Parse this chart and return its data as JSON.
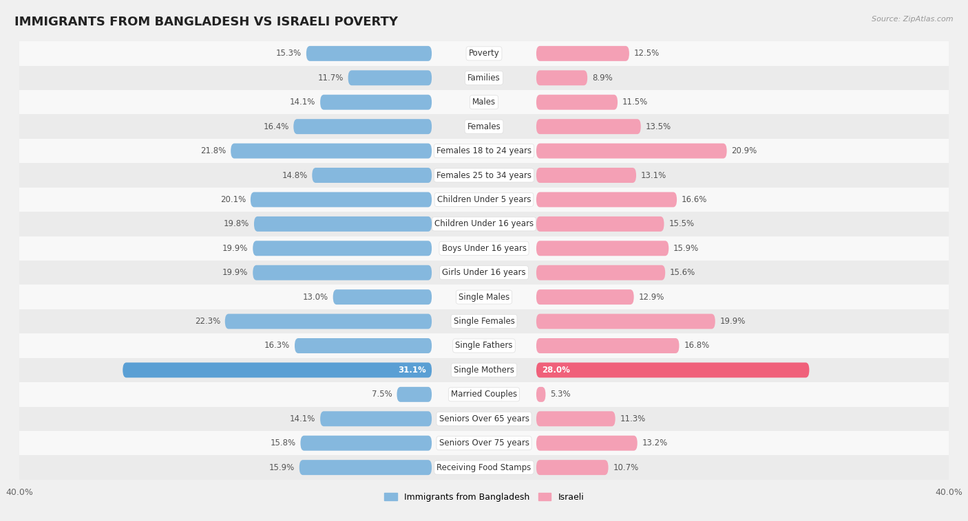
{
  "title": "IMMIGRANTS FROM BANGLADESH VS ISRAELI POVERTY",
  "source": "Source: ZipAtlas.com",
  "categories": [
    "Poverty",
    "Families",
    "Males",
    "Females",
    "Females 18 to 24 years",
    "Females 25 to 34 years",
    "Children Under 5 years",
    "Children Under 16 years",
    "Boys Under 16 years",
    "Girls Under 16 years",
    "Single Males",
    "Single Females",
    "Single Fathers",
    "Single Mothers",
    "Married Couples",
    "Seniors Over 65 years",
    "Seniors Over 75 years",
    "Receiving Food Stamps"
  ],
  "bangladesh_values": [
    15.3,
    11.7,
    14.1,
    16.4,
    21.8,
    14.8,
    20.1,
    19.8,
    19.9,
    19.9,
    13.0,
    22.3,
    16.3,
    31.1,
    7.5,
    14.1,
    15.8,
    15.9
  ],
  "israeli_values": [
    12.5,
    8.9,
    11.5,
    13.5,
    20.9,
    13.1,
    16.6,
    15.5,
    15.9,
    15.6,
    12.9,
    19.9,
    16.8,
    28.0,
    5.3,
    11.3,
    13.2,
    10.7
  ],
  "bangladesh_color": "#85b8de",
  "israeli_color": "#f4a0b5",
  "bangladesh_highlight_color": "#5a9fd4",
  "israeli_highlight_color": "#f0607a",
  "highlight_rows": [
    13
  ],
  "xlim": 40.0,
  "bg_color": "#f0f0f0",
  "row_light": "#f8f8f8",
  "row_dark": "#ebebeb",
  "title_fontsize": 13,
  "label_fontsize": 8.5,
  "value_fontsize": 8.5,
  "legend_fontsize": 9
}
